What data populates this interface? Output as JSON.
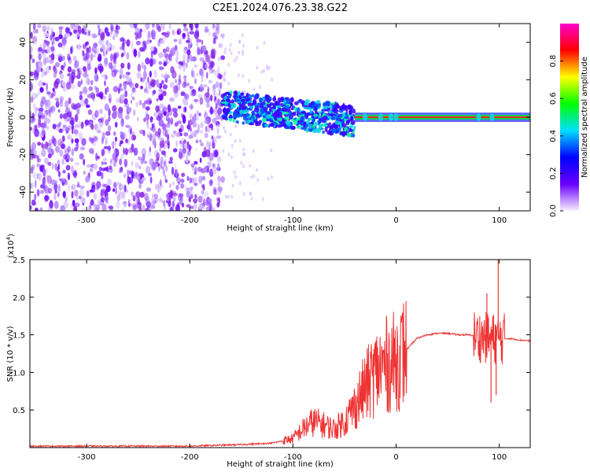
{
  "title": "C2E1.2024.076.23.38.G22",
  "chart_data": [
    {
      "type": "heatmap",
      "xlabel": "Height of straight line (km)",
      "ylabel": "Frequency (Hz)",
      "xlim": [
        -355,
        130
      ],
      "ylim": [
        -50,
        50
      ],
      "xticks": [
        -300,
        -200,
        -100,
        0,
        100
      ],
      "yticks": [
        -40,
        -20,
        0,
        20,
        40
      ],
      "colorbar": {
        "label": "Normalized spectral amplitude",
        "range": [
          0.0,
          1.0
        ],
        "ticks": [
          0.0,
          0.2,
          0.4,
          0.6,
          0.8
        ],
        "colormap": [
          "#f8f0ff",
          "#6a00ff",
          "#0000ff",
          "#00dfff",
          "#00ff00",
          "#ffff00",
          "#ff0000",
          "#ff00cc"
        ]
      },
      "regions": [
        {
          "x": [
            -355,
            -168
          ],
          "freq": [
            -50,
            50
          ],
          "amplitude": [
            0.0,
            0.3
          ],
          "note_color": "#7b1fff"
        },
        {
          "x": [
            -168,
            -40
          ],
          "freq": [
            -12,
            12
          ],
          "amplitude": [
            0.2,
            0.6
          ],
          "note_color": "#00e0c0"
        },
        {
          "x": [
            -40,
            130
          ],
          "freq": [
            -1,
            1
          ],
          "amplitude": [
            0.8,
            1.0
          ],
          "note_color": "#ff0000"
        }
      ]
    },
    {
      "type": "line",
      "xlabel": "Height of straight line (km)",
      "ylabel": "SNR (10 * v/v)",
      "y_scale_label": "(x10",
      "y_scale_exponent": "4",
      "y_scale_suffix": ")",
      "xlim": [
        -355,
        130
      ],
      "ylim": [
        0,
        2.5
      ],
      "xticks": [
        -300,
        -200,
        -100,
        0,
        100
      ],
      "yticks": [
        0.5,
        1.0,
        1.5,
        2.0,
        2.5
      ],
      "series": [
        {
          "color": "#ee3333",
          "x": [
            -355,
            -300,
            -200,
            -150,
            -120,
            -100,
            -90,
            -80,
            -70,
            -60,
            -50,
            -40,
            -30,
            -20,
            -10,
            0,
            10,
            20,
            30,
            40,
            50,
            60,
            70,
            80,
            90,
            100,
            110,
            120,
            130
          ],
          "y": [
            0.02,
            0.02,
            0.02,
            0.04,
            0.06,
            0.12,
            0.25,
            0.35,
            0.3,
            0.25,
            0.35,
            0.55,
            0.8,
            1.0,
            1.1,
            1.15,
            1.3,
            1.45,
            1.5,
            1.52,
            1.52,
            1.5,
            1.5,
            1.48,
            1.45,
            1.45,
            1.45,
            1.43,
            1.42
          ]
        }
      ]
    }
  ]
}
